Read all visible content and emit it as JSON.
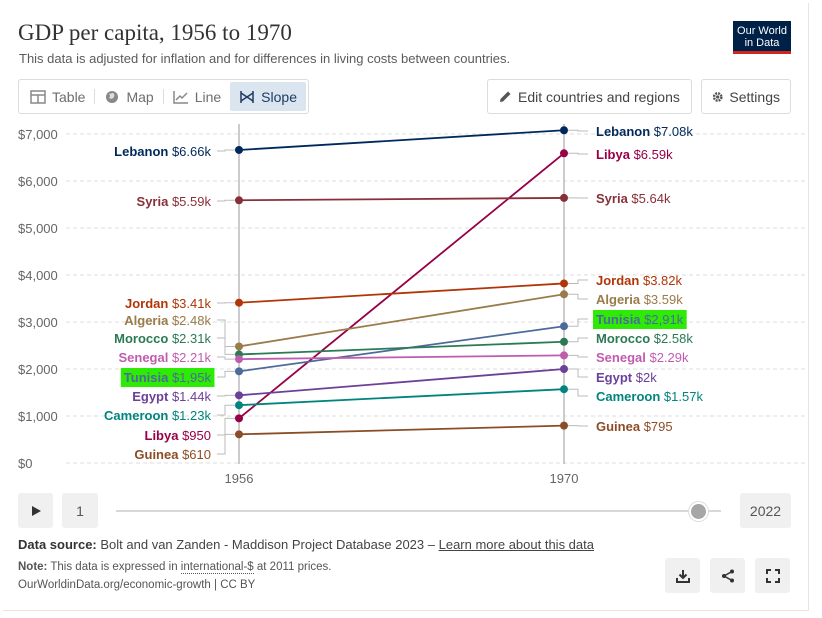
{
  "header": {
    "title": "GDP per capita, 1956 to 1970",
    "subtitle": "This data is adjusted for inflation and for differences in living costs between countries.",
    "logo_line1": "Our World",
    "logo_line2": "in Data"
  },
  "tabs": [
    {
      "label": "Table",
      "icon": "table-icon",
      "active": false
    },
    {
      "label": "Map",
      "icon": "globe-icon",
      "active": false
    },
    {
      "label": "Line",
      "icon": "line-chart-icon",
      "active": false
    },
    {
      "label": "Slope",
      "icon": "slope-icon",
      "active": true
    }
  ],
  "toolbar": {
    "edit_label": "Edit countries and regions",
    "settings_label": "Settings"
  },
  "chart_data": {
    "type": "line",
    "subtype": "slope",
    "x": [
      1956,
      1970
    ],
    "ylim": [
      0,
      7000
    ],
    "yticks": [
      0,
      1000,
      2000,
      3000,
      4000,
      5000,
      6000,
      7000
    ],
    "ytick_labels": [
      "$0",
      "$1,000",
      "$2,000",
      "$3,000",
      "$4,000",
      "$5,000",
      "$6,000",
      "$7,000"
    ],
    "xtick_labels": [
      "1956",
      "1970"
    ],
    "grid": "horizontal dashed",
    "series": [
      {
        "name": "Lebanon",
        "values": [
          6660,
          7080
        ],
        "left_label": "$6.66k",
        "right_label": "$7.08k",
        "color": "#00295b",
        "highlight": false
      },
      {
        "name": "Libya",
        "values": [
          950,
          6590
        ],
        "left_label": "$950",
        "right_label": "$6.59k",
        "color": "#970046",
        "highlight": false
      },
      {
        "name": "Syria",
        "values": [
          5590,
          5640
        ],
        "left_label": "$5.59k",
        "right_label": "$5.64k",
        "color": "#883039",
        "highlight": false
      },
      {
        "name": "Jordan",
        "values": [
          3410,
          3820
        ],
        "left_label": "$3.41k",
        "right_label": "$3.82k",
        "color": "#b13507",
        "highlight": false
      },
      {
        "name": "Algeria",
        "values": [
          2480,
          3590
        ],
        "left_label": "$2.48k",
        "right_label": "$3.59k",
        "color": "#9a7b4a",
        "highlight": false
      },
      {
        "name": "Tunisia",
        "values": [
          1950,
          2910
        ],
        "left_label": "$1,95k",
        "right_label": "$2,91k",
        "color": "#4c6a9c",
        "highlight": true
      },
      {
        "name": "Morocco",
        "values": [
          2310,
          2580
        ],
        "left_label": "$2.31k",
        "right_label": "$2.58k",
        "color": "#2a7a53",
        "highlight": false
      },
      {
        "name": "Senegal",
        "values": [
          2210,
          2290
        ],
        "left_label": "$2.21k",
        "right_label": "$2.29k",
        "color": "#c05cae",
        "highlight": false
      },
      {
        "name": "Egypt",
        "values": [
          1440,
          2000
        ],
        "left_label": "$1.44k",
        "right_label": "$2k",
        "color": "#6c3f99",
        "highlight": false
      },
      {
        "name": "Cameroon",
        "values": [
          1230,
          1570
        ],
        "left_label": "$1.23k",
        "right_label": "$1.57k",
        "color": "#00847e",
        "highlight": false
      },
      {
        "name": "Guinea",
        "values": [
          610,
          795
        ],
        "left_label": "$610",
        "right_label": "$795",
        "color": "#8c4d26",
        "highlight": false
      }
    ]
  },
  "timeline": {
    "start_year": "1",
    "end_year": "2022"
  },
  "footer": {
    "source_prefix": "Data source:",
    "source_text": "Bolt and van Zanden - Maddison Project Database 2023 –",
    "source_link": "Learn more about this data",
    "note_prefix": "Note:",
    "note_text_1": "This data is expressed in",
    "note_link": "international-$",
    "note_text_2": "at 2011 prices.",
    "credit": "OurWorldinData.org/economic-growth | CC BY"
  },
  "colors": {
    "accent": "#dbe5f0",
    "highlight": "#2eeb06",
    "grid": "#dddddd"
  }
}
